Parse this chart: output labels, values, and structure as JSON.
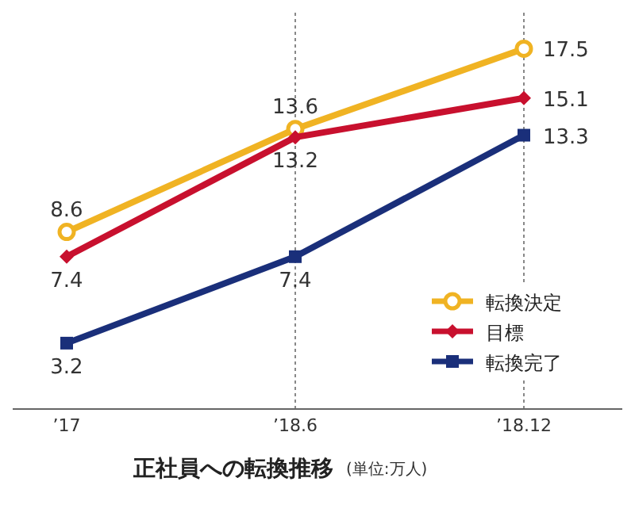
{
  "chart_data": {
    "type": "line",
    "title": "正社員への転換推移",
    "annotations": [
      "(単位:万人)"
    ],
    "categories": [
      "’17",
      "’18.6",
      "’18.12"
    ],
    "series": [
      {
        "name": "転換決定",
        "color": "#f0b323",
        "marker": "circle",
        "values": [
          8.6,
          13.6,
          17.5
        ]
      },
      {
        "name": "目標",
        "color": "#c8102e",
        "marker": "diamond",
        "values": [
          7.4,
          13.2,
          15.1
        ]
      },
      {
        "name": "転換完了",
        "color": "#1a2f7a",
        "marker": "square",
        "values": [
          3.2,
          7.4,
          13.3
        ]
      }
    ],
    "data_labels": true,
    "grid": "x",
    "legend": "bottom right"
  }
}
